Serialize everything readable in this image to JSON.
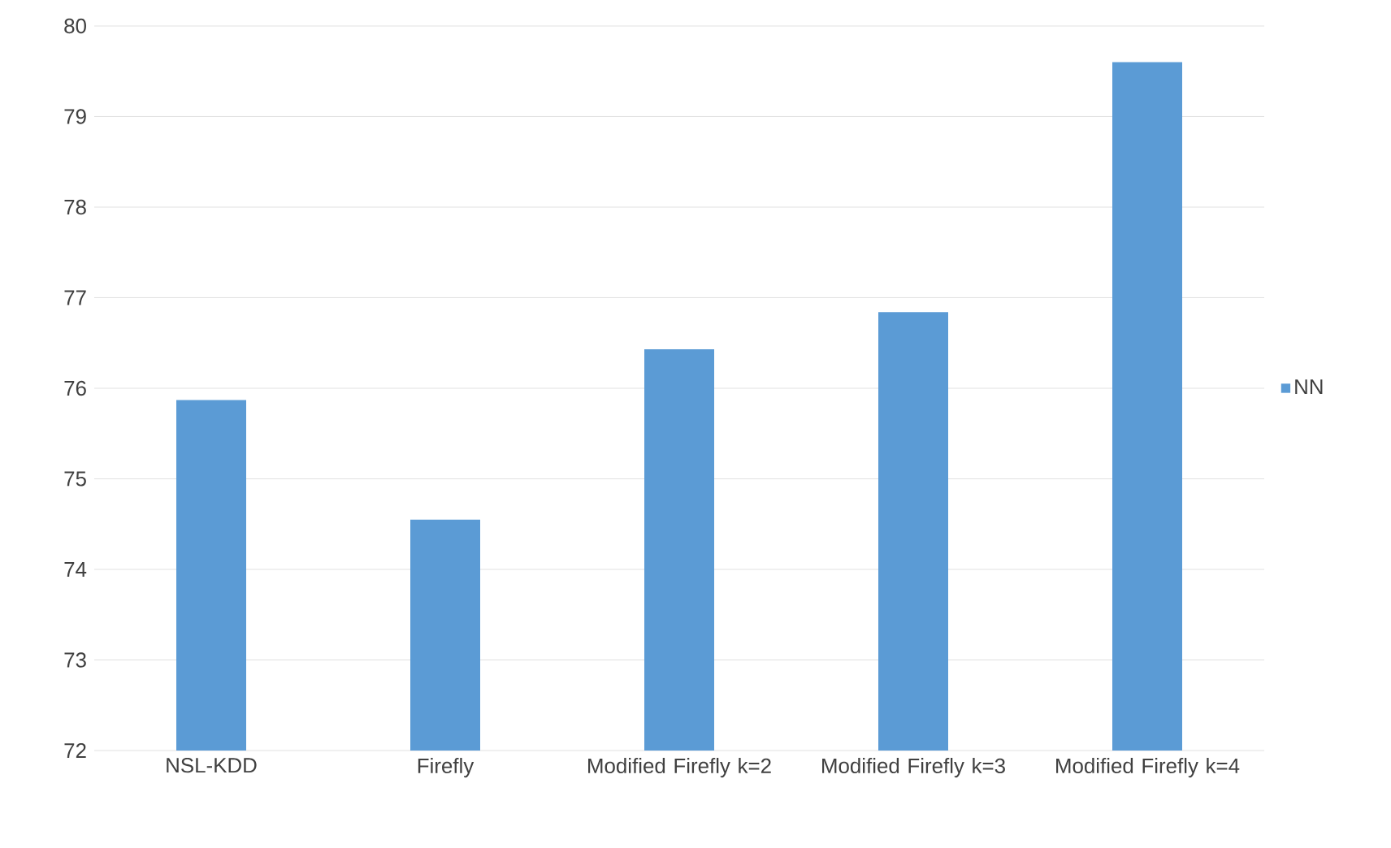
{
  "chart_data": {
    "type": "bar",
    "categories": [
      "NSL-KDD",
      "Firefly",
      "Modified Firefly k=2",
      "Modified Firefly k=3",
      "Modified Firefly k=4"
    ],
    "series": [
      {
        "name": "NN",
        "color": "#5b9bd5",
        "values": [
          75.87,
          74.55,
          76.43,
          76.84,
          79.6
        ]
      }
    ],
    "ylim": [
      72,
      80
    ],
    "yticks": [
      72,
      73,
      74,
      75,
      76,
      77,
      78,
      79,
      80
    ],
    "grid": "y",
    "legend": "right"
  }
}
